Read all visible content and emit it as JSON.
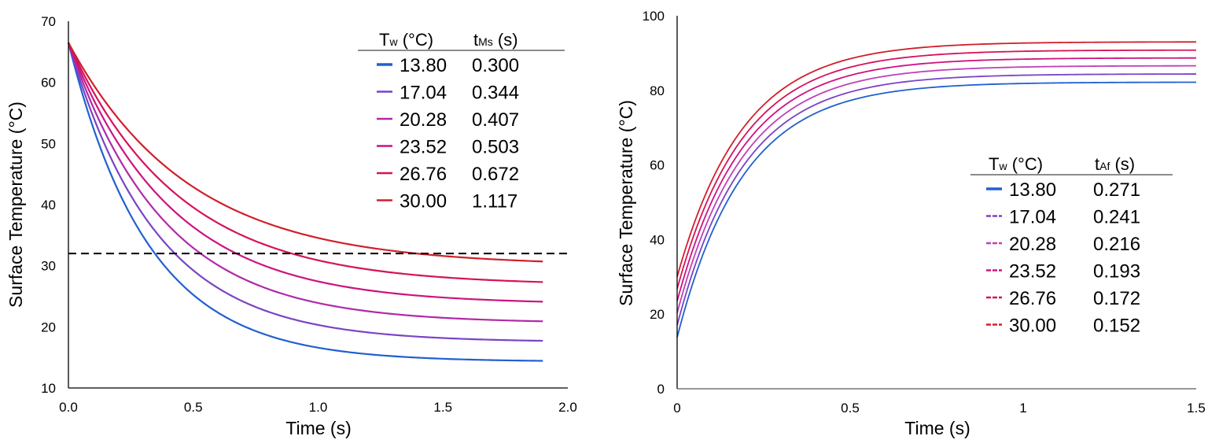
{
  "chart_data": [
    {
      "type": "line",
      "title": "",
      "xlabel": "Time (s)",
      "ylabel": "Surface Temperature (°C)",
      "xlim": [
        0,
        2.0
      ],
      "ylim": [
        10,
        70
      ],
      "x_ticks": [
        "0.0",
        "0.5",
        "1.0",
        "1.5",
        "2.0"
      ],
      "y_ticks": [
        "10",
        "20",
        "30",
        "40",
        "50",
        "60",
        "70"
      ],
      "grid": false,
      "reference_line": {
        "y": 32,
        "style": "dashed",
        "color": "#000000"
      },
      "legend": {
        "placement": "top-right",
        "header_main": "T",
        "header_main_sub": "w",
        "header_main_unit": " (°C)",
        "header_value": "t",
        "header_value_sub": "Ms",
        "header_value_unit": " (s)",
        "rows": [
          {
            "tw": "13.80",
            "t": "0.300"
          },
          {
            "tw": "17.04",
            "t": "0.344"
          },
          {
            "tw": "20.28",
            "t": "0.407"
          },
          {
            "tw": "23.52",
            "t": "0.503"
          },
          {
            "tw": "26.76",
            "t": "0.672"
          },
          {
            "tw": "30.00",
            "t": "1.117"
          }
        ]
      },
      "series": [
        {
          "name": "13.80",
          "color": "#2160d0",
          "start": 66.5,
          "end_x": 1.9,
          "asymptote": 14.3,
          "tau": 0.32
        },
        {
          "name": "17.04",
          "color": "#7a44c4",
          "start": 66.5,
          "end_x": 1.9,
          "asymptote": 17.5,
          "tau": 0.35
        },
        {
          "name": "20.28",
          "color": "#b02aa8",
          "start": 66.5,
          "end_x": 1.9,
          "asymptote": 20.6,
          "tau": 0.38
        },
        {
          "name": "23.52",
          "color": "#cc1480",
          "start": 66.5,
          "end_x": 1.9,
          "asymptote": 23.7,
          "tau": 0.41
        },
        {
          "name": "26.76",
          "color": "#d5135a",
          "start": 66.5,
          "end_x": 1.9,
          "asymptote": 26.8,
          "tau": 0.44
        },
        {
          "name": "30.00",
          "color": "#d0202a",
          "start": 66.5,
          "end_x": 1.9,
          "asymptote": 30.0,
          "tau": 0.48
        }
      ]
    },
    {
      "type": "line",
      "title": "",
      "xlabel": "Time (s)",
      "ylabel": "Surface Temperature (°C)",
      "xlim": [
        0,
        1.5
      ],
      "ylim": [
        0,
        100
      ],
      "x_ticks": [
        "0",
        "0.5",
        "1",
        "1.5"
      ],
      "y_ticks": [
        "0",
        "20",
        "40",
        "60",
        "80",
        "100"
      ],
      "grid": false,
      "legend": {
        "placement": "center-right",
        "header_main": "T",
        "header_main_sub": "w",
        "header_main_unit": " (°C)",
        "header_value": "t",
        "header_value_sub": "Af",
        "header_value_unit": " (s)",
        "rows": [
          {
            "tw": "13.80",
            "t": "0.271"
          },
          {
            "tw": "17.04",
            "t": "0.241"
          },
          {
            "tw": "20.28",
            "t": "0.216"
          },
          {
            "tw": "23.52",
            "t": "0.193"
          },
          {
            "tw": "26.76",
            "t": "0.172"
          },
          {
            "tw": "30.00",
            "t": "0.152"
          }
        ]
      },
      "series": [
        {
          "name": "13.80",
          "color": "#2160d0",
          "start": 13.8,
          "end_x": 1.5,
          "asymptote": 82.2,
          "tau": 0.19
        },
        {
          "name": "17.04",
          "color": "#7a44c4",
          "start": 17.0,
          "end_x": 1.5,
          "asymptote": 84.4,
          "tau": 0.19
        },
        {
          "name": "20.28",
          "color": "#c040b8",
          "start": 20.3,
          "end_x": 1.5,
          "asymptote": 86.6,
          "tau": 0.19
        },
        {
          "name": "23.52",
          "color": "#cc1480",
          "start": 23.5,
          "end_x": 1.5,
          "asymptote": 88.7,
          "tau": 0.19
        },
        {
          "name": "26.76",
          "color": "#d5135a",
          "start": 26.8,
          "end_x": 1.5,
          "asymptote": 90.8,
          "tau": 0.19
        },
        {
          "name": "30.00",
          "color": "#d0202a",
          "start": 30.0,
          "end_x": 1.5,
          "asymptote": 93.0,
          "tau": 0.19
        }
      ]
    }
  ]
}
